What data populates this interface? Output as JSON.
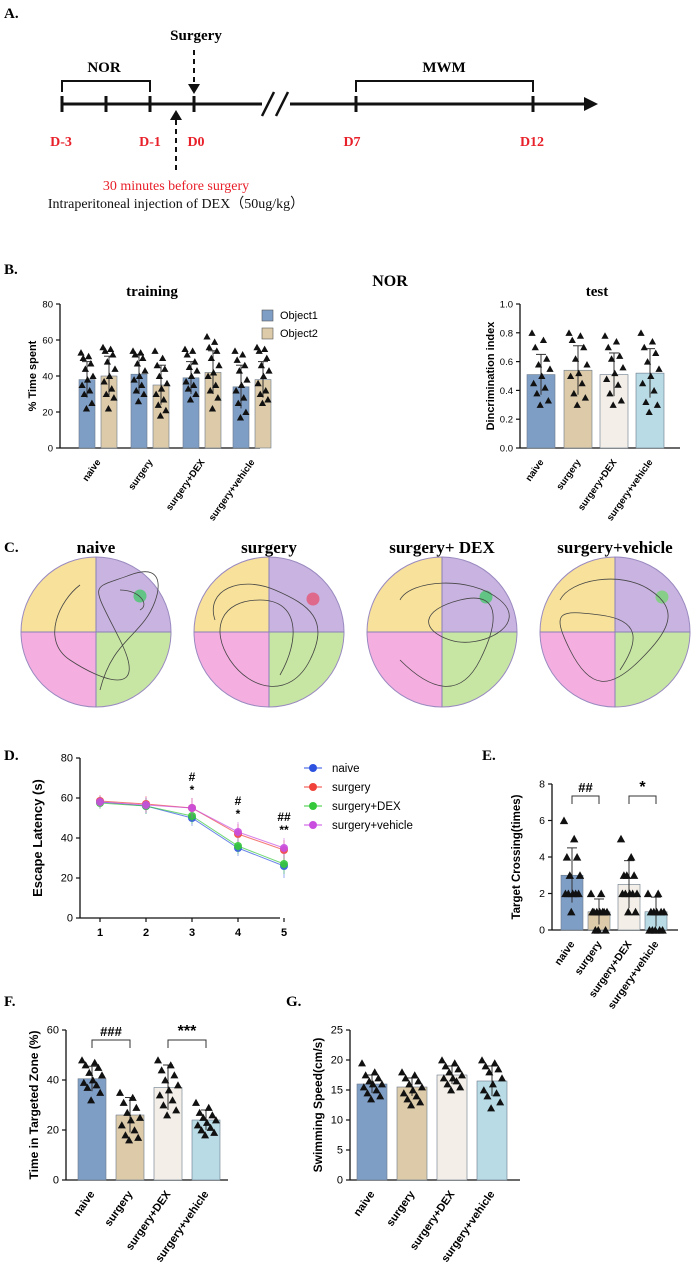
{
  "panelA": {
    "label": "A.",
    "surgery": "Surgery",
    "nor": "NOR",
    "mwm": "MWM",
    "days": [
      "D-3",
      "D-1",
      "D0",
      "D7",
      "D12"
    ],
    "note_red": "30 minutes before surgery",
    "note_black": "Intraperitoneal injection of DEX（50ug/kg）",
    "colors": {
      "red": "#e8202a",
      "black": "#111111"
    }
  },
  "panelB": {
    "label": "B.",
    "title": "NOR"
  },
  "panelC": {
    "label": "C.",
    "titles": [
      "naive",
      "surgery",
      "surgery+ DEX",
      "surgery+vehicle"
    ],
    "quadrant_colors": {
      "top_left": "#f7e19b",
      "top_right": "#c9b3e0",
      "bottom_left": "#f5aee0",
      "bottom_right": "#c7e6a3"
    },
    "platform_colors": [
      "#55c47a",
      "#e06082",
      "#55c47a",
      "#7fd07f"
    ]
  },
  "labels": {
    "D": "D.",
    "E": "E.",
    "F": "F.",
    "G": "G."
  },
  "colors": {
    "blue": "#7f9ec6",
    "tan": "#dccaa9",
    "cream": "#f3efe8",
    "lightblue": "#b8dbe5",
    "naive": "#2d52e0",
    "surgery": "#f0423a",
    "dex": "#35c83a",
    "vehicle": "#c94ee0"
  },
  "chart_data": [
    {
      "id": "B-training",
      "type": "bar",
      "title": "training",
      "ylabel": "% Time spent",
      "ylim": [
        0,
        80
      ],
      "yticks": [
        0,
        20,
        40,
        60,
        80
      ],
      "categories": [
        "naive",
        "surgery",
        "surgery+DEX",
        "surgery+vehicle"
      ],
      "series": [
        {
          "name": "Object1",
          "values": [
            38,
            41,
            39,
            34
          ],
          "errors": [
            10,
            11,
            9,
            12
          ],
          "points": [
            [
              53,
              51,
              50,
              47,
              44,
              40,
              38,
              35,
              32,
              30,
              25,
              22
            ],
            [
              54,
              53,
              52,
              50,
              47,
              43,
              40,
              38,
              35,
              32,
              30,
              26
            ],
            [
              55,
              54,
              52,
              48,
              45,
              43,
              40,
              37,
              35,
              33,
              30,
              27
            ],
            [
              54,
              52,
              49,
              46,
              43,
              38,
              35,
              32,
              28,
              25,
              20,
              17
            ]
          ]
        },
        {
          "name": "Object2",
          "values": [
            40,
            35,
            42,
            38
          ],
          "errors": [
            11,
            11,
            12,
            10
          ],
          "points": [
            [
              56,
              55,
              54,
              52,
              48,
              44,
              40,
              37,
              33,
              30,
              28,
              22
            ],
            [
              54,
              50,
              46,
              44,
              40,
              36,
              33,
              30,
              27,
              24,
              21,
              18
            ],
            [
              62,
              59,
              56,
              54,
              50,
              46,
              42,
              40,
              35,
              32,
              28,
              22
            ],
            [
              56,
              55,
              54,
              50,
              46,
              43,
              40,
              36,
              32,
              30,
              27,
              25
            ]
          ]
        }
      ]
    },
    {
      "id": "B-test",
      "type": "bar",
      "title": "test",
      "ylabel": "Dincrimination index",
      "ylim": [
        0,
        1.0
      ],
      "yticks": [
        "0.0",
        "0.2",
        "0.4",
        "0.6",
        "0.8",
        "1.0"
      ],
      "categories": [
        "naive",
        "surgery",
        "surgery+DEX",
        "surgery+vehicle"
      ],
      "values": [
        0.51,
        0.54,
        0.51,
        0.52
      ],
      "errors": [
        0.14,
        0.17,
        0.15,
        0.17
      ],
      "points": [
        [
          0.8,
          0.75,
          0.7,
          0.62,
          0.58,
          0.55,
          0.5,
          0.45,
          0.42,
          0.38,
          0.33,
          0.3
        ],
        [
          0.8,
          0.78,
          0.75,
          0.7,
          0.62,
          0.58,
          0.52,
          0.5,
          0.45,
          0.38,
          0.35,
          0.3
        ],
        [
          0.78,
          0.74,
          0.7,
          0.64,
          0.62,
          0.56,
          0.52,
          0.48,
          0.44,
          0.38,
          0.33,
          0.3
        ],
        [
          0.8,
          0.74,
          0.7,
          0.66,
          0.6,
          0.55,
          0.5,
          0.45,
          0.4,
          0.32,
          0.3,
          0.25
        ]
      ]
    },
    {
      "id": "D",
      "type": "line",
      "ylabel": "Escape Latency (s)",
      "ylim": [
        0,
        80
      ],
      "yticks": [
        0,
        20,
        40,
        60,
        80
      ],
      "x": [
        1,
        2,
        3,
        4,
        5
      ],
      "series": [
        {
          "name": "naive",
          "values": [
            58,
            56,
            50,
            35,
            26
          ],
          "errors": [
            3,
            4,
            4,
            4,
            6
          ]
        },
        {
          "name": "surgery",
          "values": [
            58.5,
            57,
            55,
            42,
            34
          ],
          "errors": [
            3,
            4,
            5,
            5,
            5
          ]
        },
        {
          "name": "surgery+DEX",
          "values": [
            57.5,
            56,
            51,
            36,
            27
          ],
          "errors": [
            3,
            4,
            4,
            4,
            5
          ]
        },
        {
          "name": "surgery+vehicle",
          "values": [
            58,
            56.5,
            55,
            43,
            35
          ],
          "errors": [
            3,
            4,
            5,
            5,
            5
          ]
        }
      ],
      "annotations": [
        {
          "x": 3,
          "lines": [
            "#",
            "*"
          ]
        },
        {
          "x": 4,
          "lines": [
            "#",
            "*"
          ]
        },
        {
          "x": 5,
          "lines": [
            "##",
            "**"
          ]
        }
      ]
    },
    {
      "id": "E",
      "type": "bar",
      "ylabel": "Target Crossing(times)",
      "ylim": [
        0,
        8
      ],
      "yticks": [
        0,
        2,
        4,
        6,
        8
      ],
      "categories": [
        "naive",
        "surgery",
        "surgery+DEX",
        "surgery+vehicle"
      ],
      "values": [
        3.0,
        1.0,
        2.5,
        1.0
      ],
      "errors": [
        1.5,
        0.7,
        1.3,
        0.8
      ],
      "points": [
        [
          6,
          5,
          4,
          4,
          3,
          3,
          2,
          2,
          2,
          2,
          2,
          1
        ],
        [
          2,
          2,
          1,
          1,
          1,
          1,
          1,
          1,
          1,
          0,
          0,
          0
        ],
        [
          5,
          4,
          3,
          3,
          3,
          2,
          2,
          2,
          2,
          2,
          1,
          1
        ],
        [
          2,
          2,
          1,
          1,
          1,
          1,
          1,
          0,
          0,
          0,
          0,
          0
        ]
      ],
      "annotations": [
        {
          "from": 0,
          "to": 1,
          "text": "##"
        },
        {
          "from": 2,
          "to": 3,
          "text": "*"
        }
      ]
    },
    {
      "id": "F",
      "type": "bar",
      "ylabel": "Time in Targeted Zone (%)",
      "ylim": [
        0,
        60
      ],
      "yticks": [
        0,
        20,
        40,
        60
      ],
      "categories": [
        "naive",
        "surgery",
        "surgery+DEX",
        "surgery+vehicle"
      ],
      "values": [
        40.5,
        26,
        37,
        24
      ],
      "errors": [
        5,
        7,
        9,
        4
      ],
      "points": [
        [
          48,
          47,
          46,
          45,
          43,
          42,
          40,
          39,
          38,
          37,
          35,
          32
        ],
        [
          35,
          33,
          31,
          29,
          27,
          25,
          24,
          22,
          20,
          18,
          17,
          16
        ],
        [
          48,
          46,
          44,
          42,
          40,
          38,
          36,
          34,
          32,
          30,
          28,
          26
        ],
        [
          31,
          29,
          27,
          26,
          25,
          24,
          23,
          22,
          21,
          20,
          19,
          18
        ]
      ],
      "annotations": [
        {
          "from": 0,
          "to": 1,
          "text": "###"
        },
        {
          "from": 2,
          "to": 3,
          "text": "***"
        }
      ]
    },
    {
      "id": "G",
      "type": "bar",
      "ylabel": "Swimming Speed(cm/s)",
      "ylim": [
        0,
        25
      ],
      "yticks": [
        0,
        5,
        10,
        15,
        20,
        25
      ],
      "categories": [
        "naive",
        "surgery",
        "surgery+DEX",
        "surgery+vehicle"
      ],
      "values": [
        16,
        15.5,
        17.5,
        16.5
      ],
      "errors": [
        1.5,
        1.5,
        1.5,
        2.5
      ],
      "points": [
        [
          19.5,
          18,
          17.5,
          17,
          16.5,
          16,
          16,
          15.5,
          15,
          14.5,
          14,
          13.5
        ],
        [
          18,
          17.5,
          17,
          16.5,
          16,
          15.5,
          15,
          14.5,
          14,
          13.5,
          13,
          12.5
        ],
        [
          20,
          19.5,
          19,
          18.5,
          18,
          17.5,
          17,
          17,
          16.5,
          16,
          15.5,
          15
        ],
        [
          20,
          19.5,
          19,
          18.5,
          18,
          17,
          16,
          15,
          14.5,
          14,
          13,
          12
        ]
      ]
    }
  ]
}
